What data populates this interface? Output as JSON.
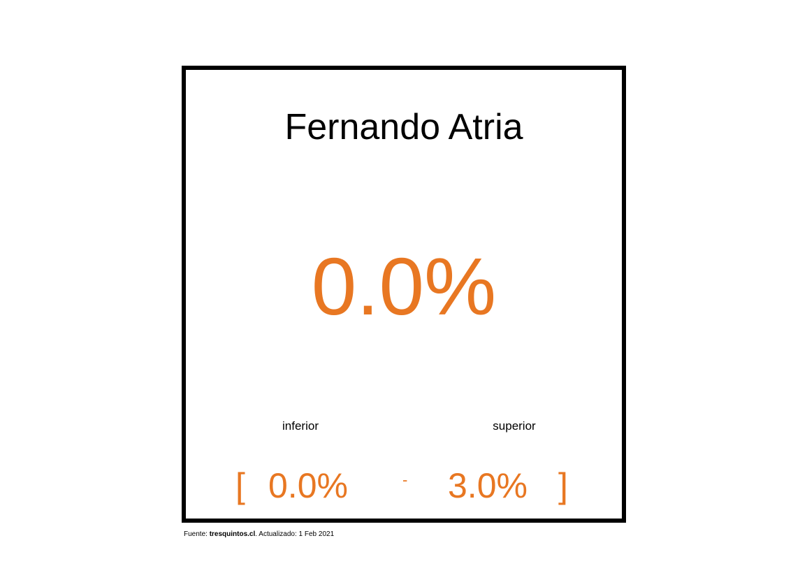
{
  "card": {
    "name": "Fernando Atria",
    "value": "0.0%",
    "lower_label": "inferior",
    "upper_label": "superior",
    "bracket_open": "[",
    "lower_value": "0.0%",
    "dash": "-",
    "upper_value": "3.0%",
    "bracket_close": "]"
  },
  "footer": {
    "prefix": "Fuente: ",
    "source": "tresquintos.cl",
    "suffix": ". Actualizado: 1 Feb 2021"
  },
  "colors": {
    "accent": "#e87722",
    "text": "#000000",
    "border": "#000000",
    "background": "#ffffff"
  }
}
